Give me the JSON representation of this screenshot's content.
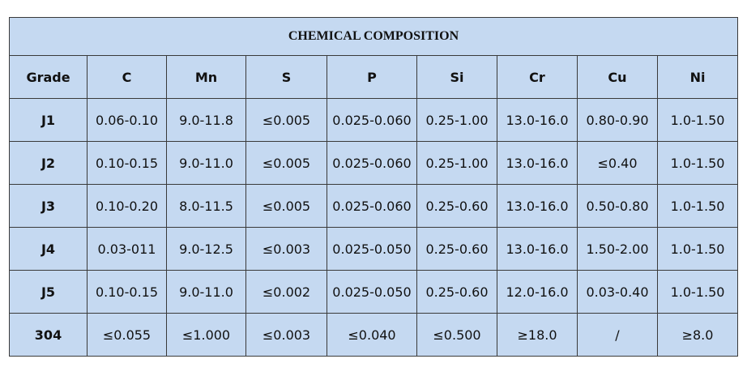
{
  "title": "CHEMICAL COMPOSITION",
  "table": {
    "header": [
      "Grade",
      "C",
      "Mn",
      "S",
      "P",
      "Si",
      "Cr",
      "Cu",
      "Ni"
    ],
    "rows": [
      [
        "J1",
        "0.06-0.10",
        "9.0-11.8",
        "≤0.005",
        "0.025-0.060",
        "0.25-1.00",
        "13.0-16.0",
        "0.80-0.90",
        "1.0-1.50"
      ],
      [
        "J2",
        "0.10-0.15",
        "9.0-11.0",
        "≤0.005",
        "0.025-0.060",
        "0.25-1.00",
        "13.0-16.0",
        "≤0.40",
        "1.0-1.50"
      ],
      [
        "J3",
        "0.10-0.20",
        "8.0-11.5",
        "≤0.005",
        "0.025-0.060",
        "0.25-0.60",
        "13.0-16.0",
        "0.50-0.80",
        "1.0-1.50"
      ],
      [
        "J4",
        "0.03-011",
        "9.0-12.5",
        "≤0.003",
        "0.025-0.050",
        "0.25-0.60",
        "13.0-16.0",
        "1.50-2.00",
        "1.0-1.50"
      ],
      [
        "J5",
        "0.10-0.15",
        "9.0-11.0",
        "≤0.002",
        "0.025-0.050",
        "0.25-0.60",
        "12.0-16.0",
        "0.03-0.40",
        "1.0-1.50"
      ],
      [
        "304",
        "≤0.055",
        "≤1.000",
        "≤0.003",
        "≤0.040",
        "≤0.500",
        "≥18.0",
        "/",
        "≥8.0"
      ]
    ]
  }
}
